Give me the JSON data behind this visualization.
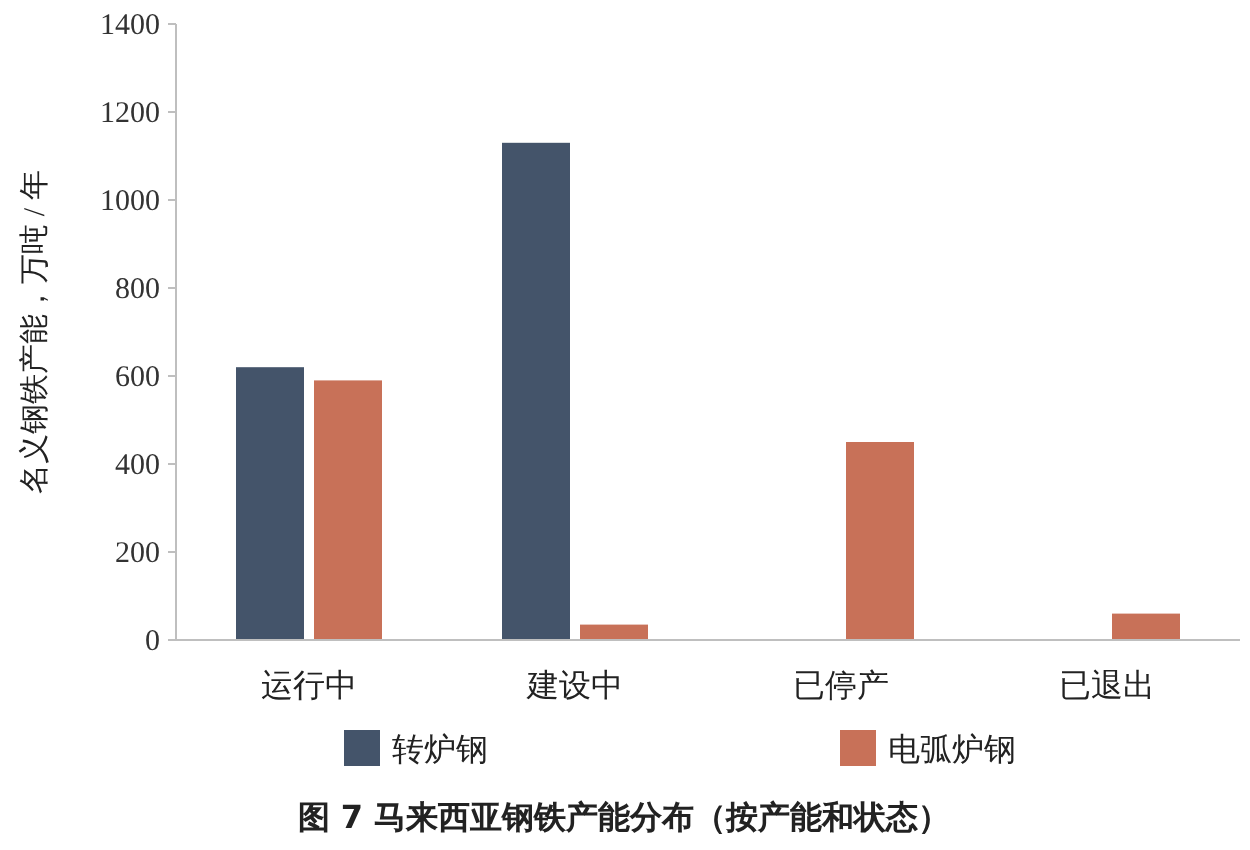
{
  "chart_data": {
    "type": "bar",
    "title": "图 7  马来西亚钢铁产能分布（按产能和状态）",
    "ylabel": "名义钢铁产能，万吨 / 年",
    "categories": [
      "运行中",
      "建设中",
      "已停产",
      "已退出"
    ],
    "series": [
      {
        "name": "转炉钢",
        "color": "#44546a",
        "values": [
          620,
          1130,
          null,
          null
        ]
      },
      {
        "name": "电弧炉钢",
        "color": "#c87158",
        "values": [
          590,
          35,
          450,
          60
        ]
      }
    ],
    "ylim": [
      0,
      1400
    ],
    "yticks": [
      0,
      200,
      400,
      600,
      800,
      1000,
      1200,
      1400
    ],
    "legend": "bottom",
    "grid": false
  }
}
